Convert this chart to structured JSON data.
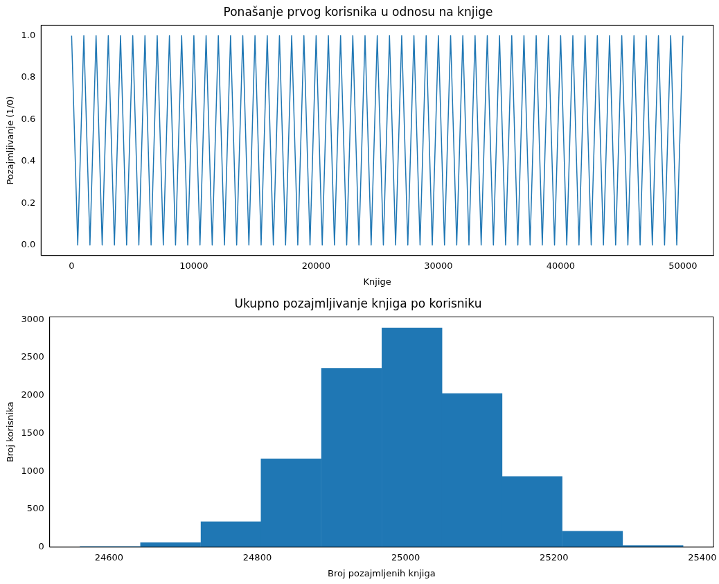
{
  "chart_data": [
    {
      "type": "line",
      "title": "Ponašanje prvog korisnika u odnosu na knjige",
      "xlabel": "Knjige",
      "ylabel": "Pozajmljivanje (1/0)",
      "color": "#1f77b4",
      "x": [
        0,
        500,
        1000,
        1500,
        2000,
        2500,
        3000,
        3500,
        4000,
        4500,
        5000,
        5500,
        6000,
        6500,
        7000,
        7500,
        8000,
        8500,
        9000,
        9500,
        10000,
        10500,
        11000,
        11500,
        12000,
        12500,
        13000,
        13500,
        14000,
        14500,
        15000,
        15500,
        16000,
        16500,
        17000,
        17500,
        18000,
        18500,
        19000,
        19500,
        20000,
        20500,
        21000,
        21500,
        22000,
        22500,
        23000,
        23500,
        24000,
        24500,
        25000,
        25500,
        26000,
        26500,
        27000,
        27500,
        28000,
        28500,
        29000,
        29500,
        30000,
        30500,
        31000,
        31500,
        32000,
        32500,
        33000,
        33500,
        34000,
        34500,
        35000,
        35500,
        36000,
        36500,
        37000,
        37500,
        38000,
        38500,
        39000,
        39500,
        40000,
        40500,
        41000,
        41500,
        42000,
        42500,
        43000,
        43500,
        44000,
        44500,
        45000,
        45500,
        46000,
        46500,
        47000,
        47500,
        48000,
        48500,
        49000,
        49500,
        50000
      ],
      "values": [
        1,
        0,
        1,
        0,
        1,
        0,
        1,
        0,
        1,
        0,
        1,
        0,
        1,
        0,
        1,
        0,
        1,
        0,
        1,
        0,
        1,
        0,
        1,
        0,
        1,
        0,
        1,
        0,
        1,
        0,
        1,
        0,
        1,
        0,
        1,
        0,
        1,
        0,
        1,
        0,
        1,
        0,
        1,
        0,
        1,
        0,
        1,
        0,
        1,
        0,
        1,
        0,
        1,
        0,
        1,
        0,
        1,
        0,
        1,
        0,
        1,
        0,
        1,
        0,
        1,
        0,
        1,
        0,
        1,
        0,
        1,
        0,
        1,
        0,
        1,
        0,
        1,
        0,
        1,
        0,
        1,
        0,
        1,
        0,
        1,
        0,
        1,
        0,
        1,
        0,
        1,
        0,
        1,
        0,
        1,
        0,
        1,
        0,
        1,
        0,
        1
      ],
      "xlim": [
        -2500,
        52500
      ],
      "xticks": [
        0,
        10000,
        20000,
        30000,
        40000,
        50000
      ],
      "ylim": [
        -0.05,
        1.05
      ],
      "yticks": [
        {
          "value": 0,
          "label": "0.0"
        },
        {
          "value": 0.2,
          "label": "0.2"
        },
        {
          "value": 0.4,
          "label": "0.4"
        },
        {
          "value": 0.6,
          "label": "0.6"
        },
        {
          "value": 0.8,
          "label": "0.8"
        },
        {
          "value": 1,
          "label": "1.0"
        }
      ],
      "grid": false,
      "legend": false
    },
    {
      "type": "histogram",
      "title": "Ukupno pozajmljivanje knjiga po korisniku",
      "xlabel": "Broj pozajmljenih knjiga",
      "ylabel": "Broj korisnika",
      "color": "#1f77b4",
      "bins": [
        24561,
        24642,
        24724,
        24805,
        24886,
        24968,
        25049,
        25130,
        25211,
        25293,
        25374
      ],
      "values": [
        10,
        60,
        335,
        1165,
        2357,
        2890,
        2025,
        930,
        210,
        20
      ],
      "xlim": [
        24520,
        25415
      ],
      "xticks": [
        24600,
        24800,
        25000,
        25200,
        25400
      ],
      "ylim": [
        0,
        3035
      ],
      "yticks": [
        0,
        500,
        1000,
        1500,
        2000,
        2500,
        3000
      ],
      "grid": false,
      "legend": false
    }
  ]
}
